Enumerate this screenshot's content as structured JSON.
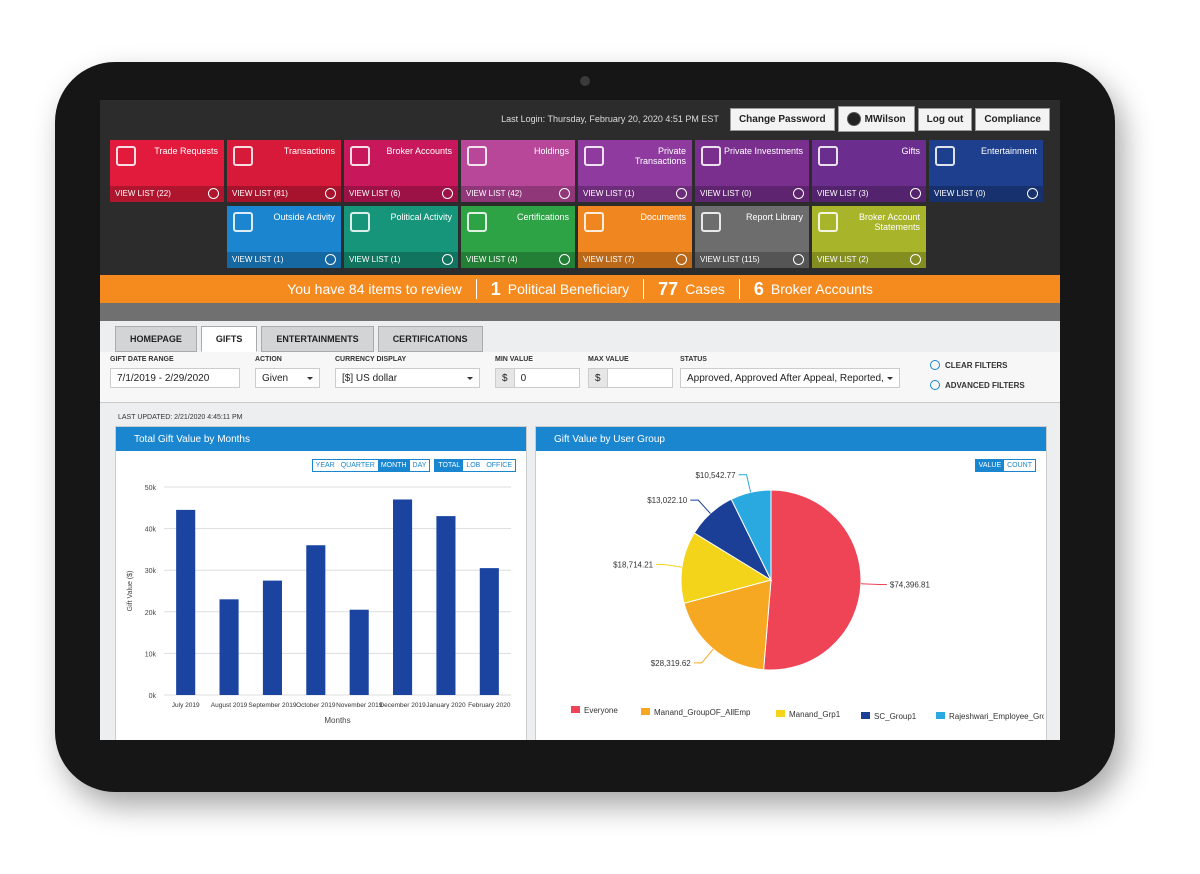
{
  "header": {
    "last_login": "Last Login: Thursday, February 20, 2020 4:51 PM EST",
    "buttons": [
      "Change Password",
      "MWilson",
      "Log out",
      "Compliance"
    ]
  },
  "tiles": [
    {
      "title": "Trade Requests",
      "link": "VIEW LIST (22)"
    },
    {
      "title": "Transactions",
      "link": "VIEW LIST (81)"
    },
    {
      "title": "Broker Accounts",
      "link": "VIEW LIST (6)"
    },
    {
      "title": "Holdings",
      "link": "VIEW LIST (42)"
    },
    {
      "title": "Private Transactions",
      "link": "VIEW LIST (1)"
    },
    {
      "title": "Private Investments",
      "link": "VIEW LIST (0)"
    },
    {
      "title": "Gifts",
      "link": "VIEW LIST (3)"
    },
    {
      "title": "Entertainment",
      "link": "VIEW LIST (0)"
    },
    {
      "title": "Outside Activity",
      "link": "VIEW LIST (1)"
    },
    {
      "title": "Political Activity",
      "link": "VIEW LIST (1)"
    },
    {
      "title": "Certifications",
      "link": "VIEW LIST (4)"
    },
    {
      "title": "Documents",
      "link": "VIEW LIST (7)"
    },
    {
      "title": "Report Library",
      "link": "VIEW LIST (115)"
    },
    {
      "title": "Broker Account Statements",
      "link": "VIEW LIST (2)"
    }
  ],
  "summary": {
    "review": "You have 84 items to review",
    "items": [
      {
        "count": "1",
        "label": "Political Beneficiary"
      },
      {
        "count": "77",
        "label": "Cases"
      },
      {
        "count": "6",
        "label": "Broker Accounts"
      }
    ]
  },
  "tabs": [
    "HOMEPAGE",
    "GIFTS",
    "ENTERTAINMENTS",
    "CERTIFICATIONS"
  ],
  "filters": [
    {
      "label": "GIFT DATE RANGE",
      "value": "7/1/2019 - 2/29/2020"
    },
    {
      "label": "ACTION",
      "value": "Given"
    },
    {
      "label": "CURRENCY DISPLAY",
      "value": "[$] US dollar"
    },
    {
      "label": "MIN VALUE",
      "prefix": "$",
      "value": "0"
    },
    {
      "label": "MAX VALUE",
      "prefix": "$"
    },
    {
      "label": "STATUS",
      "value": "Approved, Approved After Appeal, Reported,"
    }
  ],
  "filter_actions": [
    "CLEAR FILTERS",
    "ADVANCED FILTERS"
  ],
  "last_updated": "LAST UPDATED: 2/21/2020 4:45:11 PM",
  "panels": [
    {
      "toggles": [
        [
          "YEAR",
          "QUARTER",
          "MONTH",
          "DAY"
        ],
        [
          "TOTAL",
          "LOB",
          "OFFICE"
        ]
      ]
    },
    {
      "toggles": [
        [
          "VALUE",
          "COUNT"
        ]
      ]
    }
  ],
  "chart_data": [
    {
      "type": "bar",
      "title": "Total Gift Value by Months",
      "categories": [
        "July 2019",
        "August 2019",
        "September 2019",
        "October 2019",
        "November 2019",
        "December 2019",
        "January 2020",
        "February 2020"
      ],
      "values": [
        44500,
        23000,
        27500,
        36000,
        20500,
        47000,
        43000,
        30500
      ],
      "color": "#1a44a0",
      "x_label": "Months",
      "y_label": "Gift Value ($)",
      "ylim": [
        0,
        50000
      ],
      "yticks": [
        {
          "value": 0,
          "label": "0k"
        },
        {
          "value": 10000,
          "label": "10k"
        },
        {
          "value": 20000,
          "label": "20k"
        },
        {
          "value": 30000,
          "label": "30k"
        },
        {
          "value": 40000,
          "label": "40k"
        },
        {
          "value": 50000,
          "label": "50k"
        }
      ],
      "grid": true
    },
    {
      "type": "pie",
      "title": "Gift Value by User Group",
      "categories": [
        "Everyone",
        "Manand_GroupOF_AllEmp",
        "Manand_Grp1",
        "SC_Group1",
        "Rajeshwari_Employee_Group"
      ],
      "values": [
        74396.81,
        28319.62,
        18714.21,
        13022.1,
        10542.77
      ],
      "value_labels": [
        "$74,396.81",
        "$28,319.62",
        "$18,714.21",
        "$13,022.10",
        "$10,542.77"
      ],
      "colors": [
        "#ee4456",
        "#f7a823",
        "#f3d41b",
        "#1b3f97",
        "#2aa9e1"
      ]
    }
  ]
}
